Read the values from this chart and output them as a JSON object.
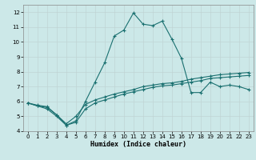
{
  "xlabel": "Humidex (Indice chaleur)",
  "bg_color": "#cce8e8",
  "grid_color": "#aacece",
  "line_color": "#1a7070",
  "xlim": [
    -0.5,
    23.5
  ],
  "ylim": [
    4,
    12.5
  ],
  "xticks": [
    0,
    1,
    2,
    3,
    4,
    5,
    6,
    7,
    8,
    9,
    10,
    11,
    12,
    13,
    14,
    15,
    16,
    17,
    18,
    19,
    20,
    21,
    22,
    23
  ],
  "yticks": [
    4,
    5,
    6,
    7,
    8,
    9,
    10,
    11,
    12
  ],
  "line_main_x": [
    0,
    1,
    2,
    3,
    4,
    5,
    6,
    7,
    8,
    9,
    10,
    11,
    12,
    13,
    14,
    15,
    16,
    17,
    18,
    19,
    20,
    21,
    22,
    23
  ],
  "line_main_y": [
    5.9,
    5.7,
    5.6,
    5.1,
    4.4,
    4.7,
    6.0,
    7.3,
    8.6,
    10.4,
    10.8,
    11.95,
    11.2,
    11.1,
    11.4,
    10.2,
    8.9,
    6.6,
    6.6,
    7.3,
    7.0,
    7.1,
    7.0,
    6.8
  ],
  "line_low_x": [
    0,
    1,
    2,
    3,
    4,
    5,
    6,
    7,
    8,
    9,
    10,
    11,
    12,
    13,
    14,
    15,
    16,
    17,
    18,
    19,
    20,
    21,
    22,
    23
  ],
  "line_low_y": [
    5.9,
    5.7,
    5.5,
    5.0,
    4.4,
    4.6,
    5.5,
    5.9,
    6.1,
    6.3,
    6.5,
    6.65,
    6.8,
    6.95,
    7.05,
    7.1,
    7.2,
    7.3,
    7.4,
    7.55,
    7.6,
    7.65,
    7.7,
    7.75
  ],
  "line_mid_x": [
    0,
    1,
    2,
    3,
    4,
    5,
    6,
    7,
    8,
    9,
    10,
    11,
    12,
    13,
    14,
    15,
    16,
    17,
    18,
    19,
    20,
    21,
    22,
    23
  ],
  "line_mid_y": [
    5.9,
    5.75,
    5.65,
    5.1,
    4.5,
    5.0,
    5.8,
    6.1,
    6.3,
    6.5,
    6.65,
    6.8,
    7.0,
    7.1,
    7.2,
    7.25,
    7.35,
    7.5,
    7.6,
    7.7,
    7.8,
    7.85,
    7.9,
    7.95
  ]
}
